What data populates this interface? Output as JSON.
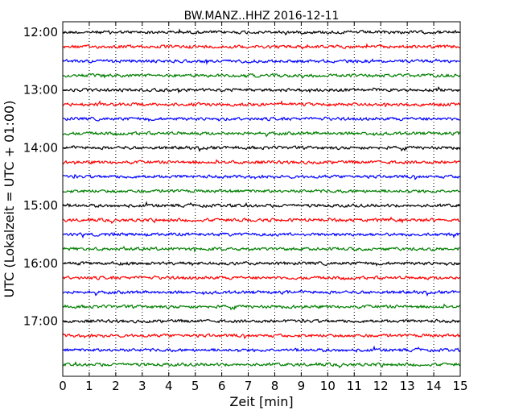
{
  "chart_data": {
    "type": "line",
    "title": "BW.MANZ..HHZ 2016-12-11",
    "xlabel": "Zeit  [min]",
    "ylabel": "UTC (Lokalzeit = UTC + 01:00)",
    "xlim": [
      0,
      15
    ],
    "x_ticks": [
      "0",
      "1",
      "2",
      "3",
      "4",
      "5",
      "6",
      "7",
      "8",
      "9",
      "10",
      "11",
      "12",
      "13",
      "14",
      "15"
    ],
    "y_tick_labels": [
      "12:00",
      "13:00",
      "14:00",
      "15:00",
      "16:00",
      "17:00"
    ],
    "grid": {
      "x": true,
      "style": "dotted"
    },
    "trace_colors": [
      "#000000",
      "#ff0000",
      "#0000ff",
      "#008000"
    ],
    "traces": [
      {
        "start": "12:00",
        "color": "#000000"
      },
      {
        "start": "12:15",
        "color": "#ff0000"
      },
      {
        "start": "12:30",
        "color": "#0000ff"
      },
      {
        "start": "12:45",
        "color": "#008000"
      },
      {
        "start": "13:00",
        "color": "#000000"
      },
      {
        "start": "13:15",
        "color": "#ff0000"
      },
      {
        "start": "13:30",
        "color": "#0000ff"
      },
      {
        "start": "13:45",
        "color": "#008000"
      },
      {
        "start": "14:00",
        "color": "#000000"
      },
      {
        "start": "14:15",
        "color": "#ff0000"
      },
      {
        "start": "14:30",
        "color": "#0000ff"
      },
      {
        "start": "14:45",
        "color": "#008000"
      },
      {
        "start": "15:00",
        "color": "#000000"
      },
      {
        "start": "15:15",
        "color": "#ff0000"
      },
      {
        "start": "15:30",
        "color": "#0000ff"
      },
      {
        "start": "15:45",
        "color": "#008000"
      },
      {
        "start": "16:00",
        "color": "#000000"
      },
      {
        "start": "16:15",
        "color": "#ff0000"
      },
      {
        "start": "16:30",
        "color": "#0000ff"
      },
      {
        "start": "16:45",
        "color": "#008000"
      },
      {
        "start": "17:00",
        "color": "#000000"
      },
      {
        "start": "17:15",
        "color": "#ff0000"
      },
      {
        "start": "17:30",
        "color": "#0000ff"
      },
      {
        "start": "17:45",
        "color": "#008000"
      }
    ]
  }
}
